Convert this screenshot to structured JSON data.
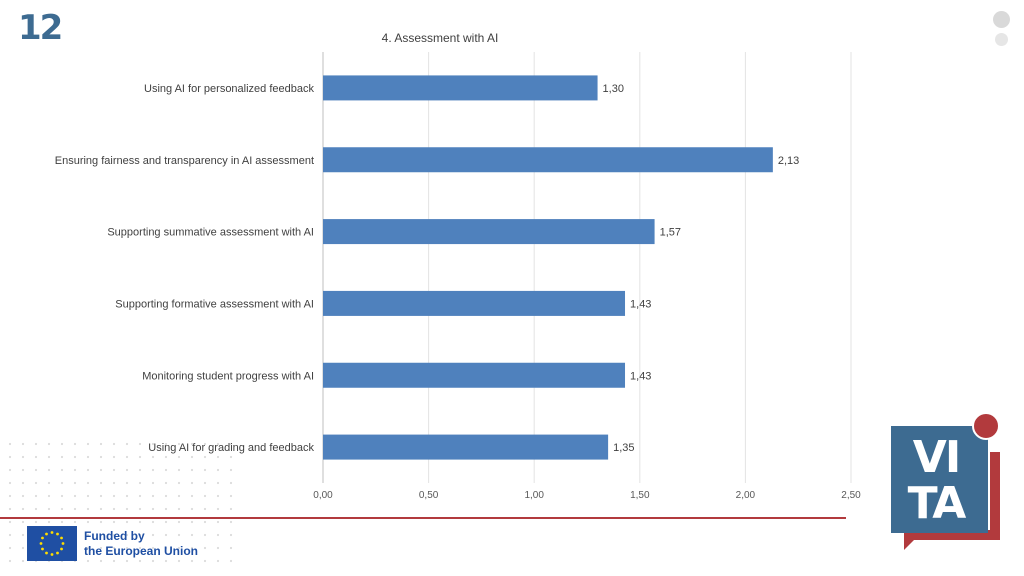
{
  "slide": {
    "number": "12"
  },
  "footer": {
    "funded_line1": "Funded by",
    "funded_line2": "the European Union"
  },
  "logo": {
    "name": "VITA",
    "text": "VITA"
  },
  "icons": {
    "flag": "eu-flag-icon",
    "logo": "vita-logo-icon"
  },
  "colors": {
    "bar": "#4f81bd",
    "accent_red": "#b23a3d",
    "brand_blue": "#3d6b91",
    "eu_blue": "#1f4fa3"
  },
  "chart_data": {
    "type": "bar",
    "orientation": "horizontal",
    "title": "4. Assessment with AI",
    "categories": [
      "Using AI for personalized feedback",
      "Ensuring fairness and transparency in AI assessment",
      "Supporting summative assessment with AI",
      "Supporting formative assessment with AI",
      "Monitoring student progress with AI",
      "Using AI for grading and feedback"
    ],
    "values": [
      1.3,
      2.13,
      1.57,
      1.43,
      1.43,
      1.35
    ],
    "value_labels": [
      "1,30",
      "2,13",
      "1,57",
      "1,43",
      "1,43",
      "1,35"
    ],
    "xlim": [
      0,
      2.5
    ],
    "xticks": [
      0,
      0.5,
      1,
      1.5,
      2,
      2.5
    ],
    "xtick_labels": [
      "0,00",
      "0,50",
      "1,00",
      "1,50",
      "2,00",
      "2,50"
    ],
    "grid": "vertical",
    "legend": "none"
  }
}
